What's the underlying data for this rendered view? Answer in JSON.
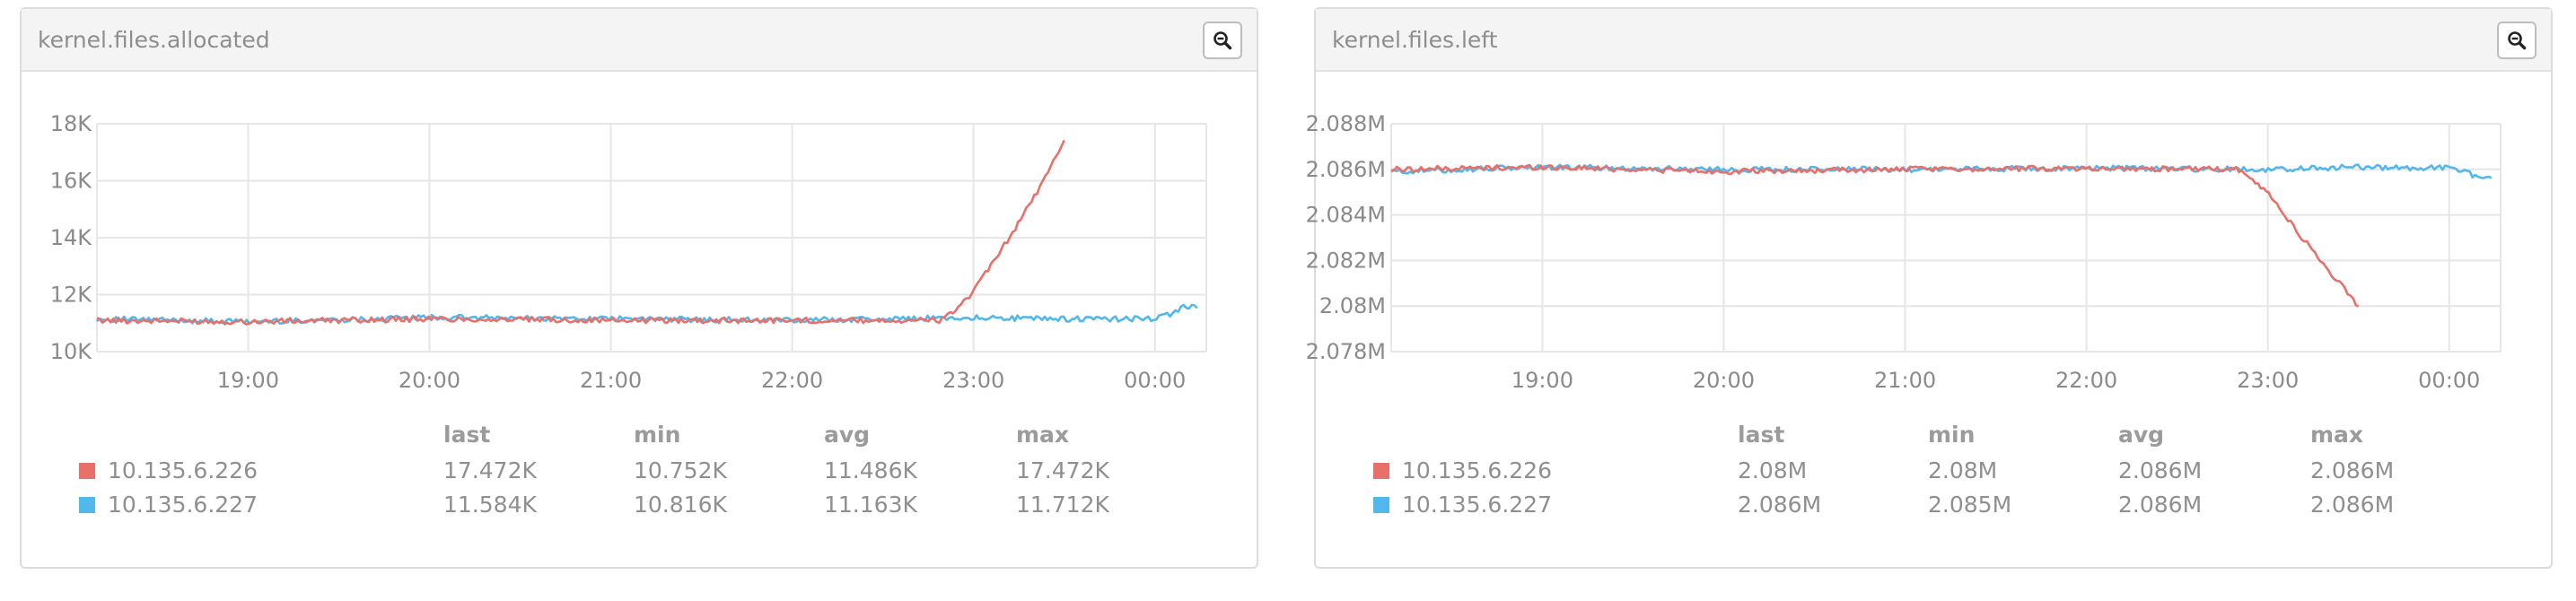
{
  "colors": {
    "series1": "#e8706b",
    "series2": "#52b7ea",
    "grid": "#e6e6e6"
  },
  "icons": {
    "zoom": "zoom-out-icon"
  },
  "panels": [
    {
      "title": "kernel.files.allocated",
      "yticks": [
        "10K",
        "12K",
        "14K",
        "16K",
        "18K"
      ],
      "xticks": [
        "19:00",
        "20:00",
        "21:00",
        "22:00",
        "23:00",
        "00:00"
      ],
      "legend": {
        "headers": [
          "last",
          "min",
          "avg",
          "max"
        ],
        "rows": [
          {
            "name": "10.135.6.226",
            "last": "17.472K",
            "min": "10.752K",
            "avg": "11.486K",
            "max": "17.472K"
          },
          {
            "name": "10.135.6.227",
            "last": "11.584K",
            "min": "10.816K",
            "avg": "11.163K",
            "max": "11.712K"
          }
        ]
      }
    },
    {
      "title": "kernel.files.left",
      "yticks": [
        "2.078M",
        "2.08M",
        "2.082M",
        "2.084M",
        "2.086M",
        "2.088M"
      ],
      "xticks": [
        "19:00",
        "20:00",
        "21:00",
        "22:00",
        "23:00",
        "00:00"
      ],
      "legend": {
        "headers": [
          "last",
          "min",
          "avg",
          "max"
        ],
        "rows": [
          {
            "name": "10.135.6.226",
            "last": "2.08M",
            "min": "2.08M",
            "avg": "2.086M",
            "max": "2.086M"
          },
          {
            "name": "10.135.6.227",
            "last": "2.086M",
            "min": "2.085M",
            "avg": "2.086M",
            "max": "2.086M"
          }
        ]
      }
    }
  ],
  "chart_data": [
    {
      "type": "line",
      "title": "kernel.files.allocated",
      "x_unit": "time of day",
      "xlim": [
        "18:10",
        "00:17"
      ],
      "ylim": [
        10000,
        18000
      ],
      "grid": true,
      "legend_placement": "bottom",
      "series": [
        {
          "name": "10.135.6.226",
          "x": [
            "18:10",
            "19:00",
            "20:00",
            "21:00",
            "22:00",
            "22:50",
            "23:00",
            "23:10",
            "23:20",
            "23:25",
            "23:30"
          ],
          "y": [
            11100,
            11050,
            11150,
            11100,
            11100,
            11100,
            12100,
            13700,
            15400,
            16400,
            17472
          ]
        },
        {
          "name": "10.135.6.227",
          "x": [
            "18:10",
            "19:00",
            "20:00",
            "21:00",
            "22:00",
            "23:00",
            "23:30",
            "00:00",
            "00:05",
            "00:10",
            "00:14"
          ],
          "y": [
            11150,
            11050,
            11200,
            11150,
            11100,
            11200,
            11150,
            11150,
            11300,
            11600,
            11584
          ]
        }
      ]
    },
    {
      "type": "line",
      "title": "kernel.files.left",
      "x_unit": "time of day",
      "xlim": [
        "18:10",
        "00:17"
      ],
      "ylim": [
        2078000,
        2088000
      ],
      "grid": true,
      "legend_placement": "bottom",
      "series": [
        {
          "name": "10.135.6.226",
          "x": [
            "18:10",
            "19:00",
            "20:00",
            "21:00",
            "22:00",
            "22:50",
            "23:00",
            "23:10",
            "23:20",
            "23:25",
            "23:30"
          ],
          "y": [
            2086000,
            2086100,
            2085900,
            2086000,
            2086050,
            2086000,
            2085000,
            2083200,
            2081600,
            2080800,
            2080000
          ]
        },
        {
          "name": "10.135.6.227",
          "x": [
            "18:10",
            "19:00",
            "20:00",
            "21:00",
            "22:00",
            "23:00",
            "23:30",
            "00:00",
            "00:05",
            "00:10",
            "00:14"
          ],
          "y": [
            2085900,
            2086100,
            2086000,
            2086000,
            2086050,
            2086000,
            2086100,
            2086050,
            2085950,
            2085600,
            2085600
          ]
        }
      ]
    }
  ]
}
